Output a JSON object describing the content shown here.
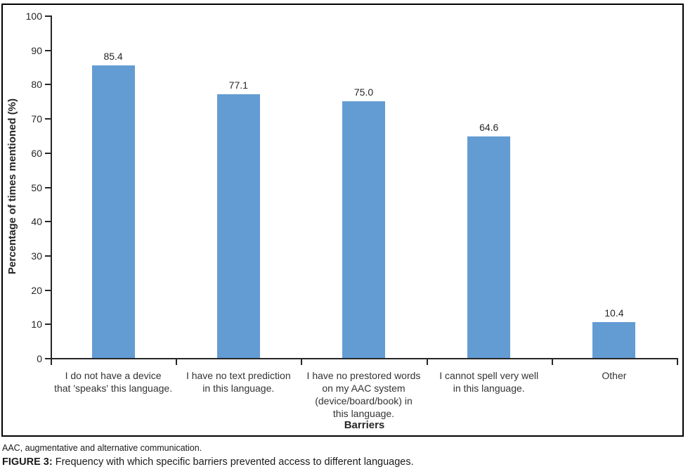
{
  "chart_data": {
    "type": "bar",
    "title": "",
    "categories": [
      "I do not have a device\nthat 'speaks' this language.",
      "I have no text prediction\nin this language.",
      "I have no prestored words\non my AAC system\n(device/board/book) in\nthis language.",
      "I cannot spell very well\nin this language.",
      "Other"
    ],
    "values": [
      85.4,
      77.1,
      75.0,
      64.6,
      10.4
    ],
    "xlabel": "Barriers",
    "ylabel": "Percentage of times mentioned (%)",
    "ylim": [
      0,
      100
    ],
    "yticks": [
      0,
      10,
      20,
      30,
      40,
      50,
      60,
      70,
      80,
      90,
      100
    ],
    "grid": false,
    "legend": "none",
    "bar_color": "#639CD3",
    "value_label_decimals": 1
  },
  "footnote": "AAC, augmentative and alternative communication.",
  "caption": {
    "label": "FIGURE 3:",
    "text": " Frequency with which specific barriers prevented access to different languages."
  },
  "colors": {
    "bar": "#639CD3",
    "axis": "#262626",
    "frame": "#000000",
    "text": "#262626"
  }
}
